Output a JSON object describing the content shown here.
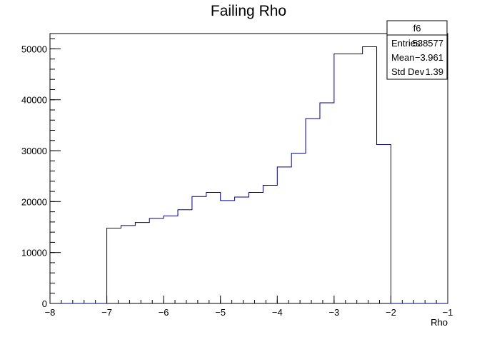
{
  "chart_data": {
    "type": "histogram",
    "title": "Failing Rho",
    "xlabel": "Rho",
    "ylabel": "",
    "xlim": [
      -8,
      -1
    ],
    "ylim": [
      0,
      53000
    ],
    "x_ticks": [
      -8,
      -7,
      -6,
      -5,
      -4,
      -3,
      -2,
      -1
    ],
    "y_ticks": [
      0,
      10000,
      20000,
      30000,
      40000,
      50000
    ],
    "line_color": "#000080",
    "bin_edges": [
      -8.0,
      -7.75,
      -7.5,
      -7.25,
      -7.0,
      -6.75,
      -6.5,
      -6.25,
      -6.0,
      -5.75,
      -5.5,
      -5.25,
      -5.0,
      -4.75,
      -4.5,
      -4.25,
      -4.0,
      -3.75,
      -3.5,
      -3.25,
      -3.0,
      -2.75,
      -2.5,
      -2.25,
      -2.0,
      -1.75,
      -1.5,
      -1.25,
      -1.0
    ],
    "values": [
      0,
      0,
      0,
      0,
      14800,
      15300,
      15900,
      16700,
      17200,
      18400,
      21000,
      21800,
      20200,
      20900,
      21800,
      23200,
      26800,
      29500,
      36300,
      39400,
      49000,
      49000,
      50400,
      31200,
      0,
      0,
      0,
      0
    ],
    "stats_box": {
      "name": "f6",
      "rows": [
        {
          "label": "Entries",
          "value": "538577"
        },
        {
          "label": "Mean",
          "value": "−3.961"
        },
        {
          "label": "Std Dev",
          "value": "1.39"
        }
      ]
    }
  }
}
